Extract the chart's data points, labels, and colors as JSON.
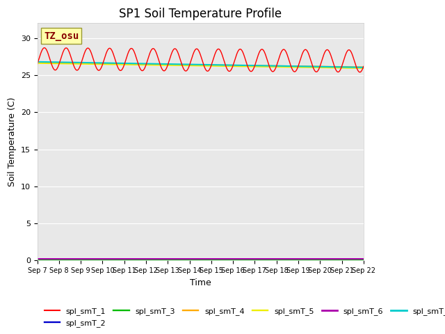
{
  "title": "SP1 Soil Temperature Profile",
  "xlabel": "Time",
  "ylabel": "Soil Temperature (C)",
  "ylim": [
    0,
    32
  ],
  "yticks": [
    0,
    5,
    10,
    15,
    20,
    25,
    30
  ],
  "series": {
    "spl_smT_1": {
      "color": "#ff0000",
      "lw": 1.0,
      "mean": 27.2,
      "amp": 1.5,
      "freq": 1.0,
      "trend": -0.02
    },
    "spl_smT_2": {
      "color": "#0000cc",
      "lw": 1.2,
      "mean": 0.18
    },
    "spl_smT_3": {
      "color": "#00bb00",
      "lw": 1.2,
      "mean": 0.12
    },
    "spl_smT_4": {
      "color": "#ffaa00",
      "lw": 1.2,
      "mean": 26.7,
      "trend": -0.04
    },
    "spl_smT_5": {
      "color": "#eeee00",
      "lw": 1.2,
      "mean": 26.6,
      "trend": -0.045
    },
    "spl_smT_6": {
      "color": "#aa00aa",
      "lw": 1.5,
      "mean": 0.22
    },
    "spl_smT_7": {
      "color": "#00cccc",
      "lw": 1.5,
      "mean": 26.8,
      "trend": -0.05
    }
  },
  "annotation_text": "TZ_osu",
  "annotation_color": "#880000",
  "annotation_bg": "#ffffaa",
  "annotation_border": "#999933",
  "background_color": "#e8e8e8",
  "plot_bg": "#e8e8e8",
  "grid_color": "#ffffff",
  "tick_labels": [
    "Sep 7",
    "Sep 8",
    "Sep 9",
    "Sep 10",
    "Sep 11",
    "Sep 12",
    "Sep 13",
    "Sep 14",
    "Sep 15",
    "Sep 16",
    "Sep 17",
    "Sep 18",
    "Sep 19",
    "Sep 20",
    "Sep 21",
    "Sep 22"
  ],
  "title_fontsize": 12,
  "tick_fontsize": 7,
  "label_fontsize": 9
}
